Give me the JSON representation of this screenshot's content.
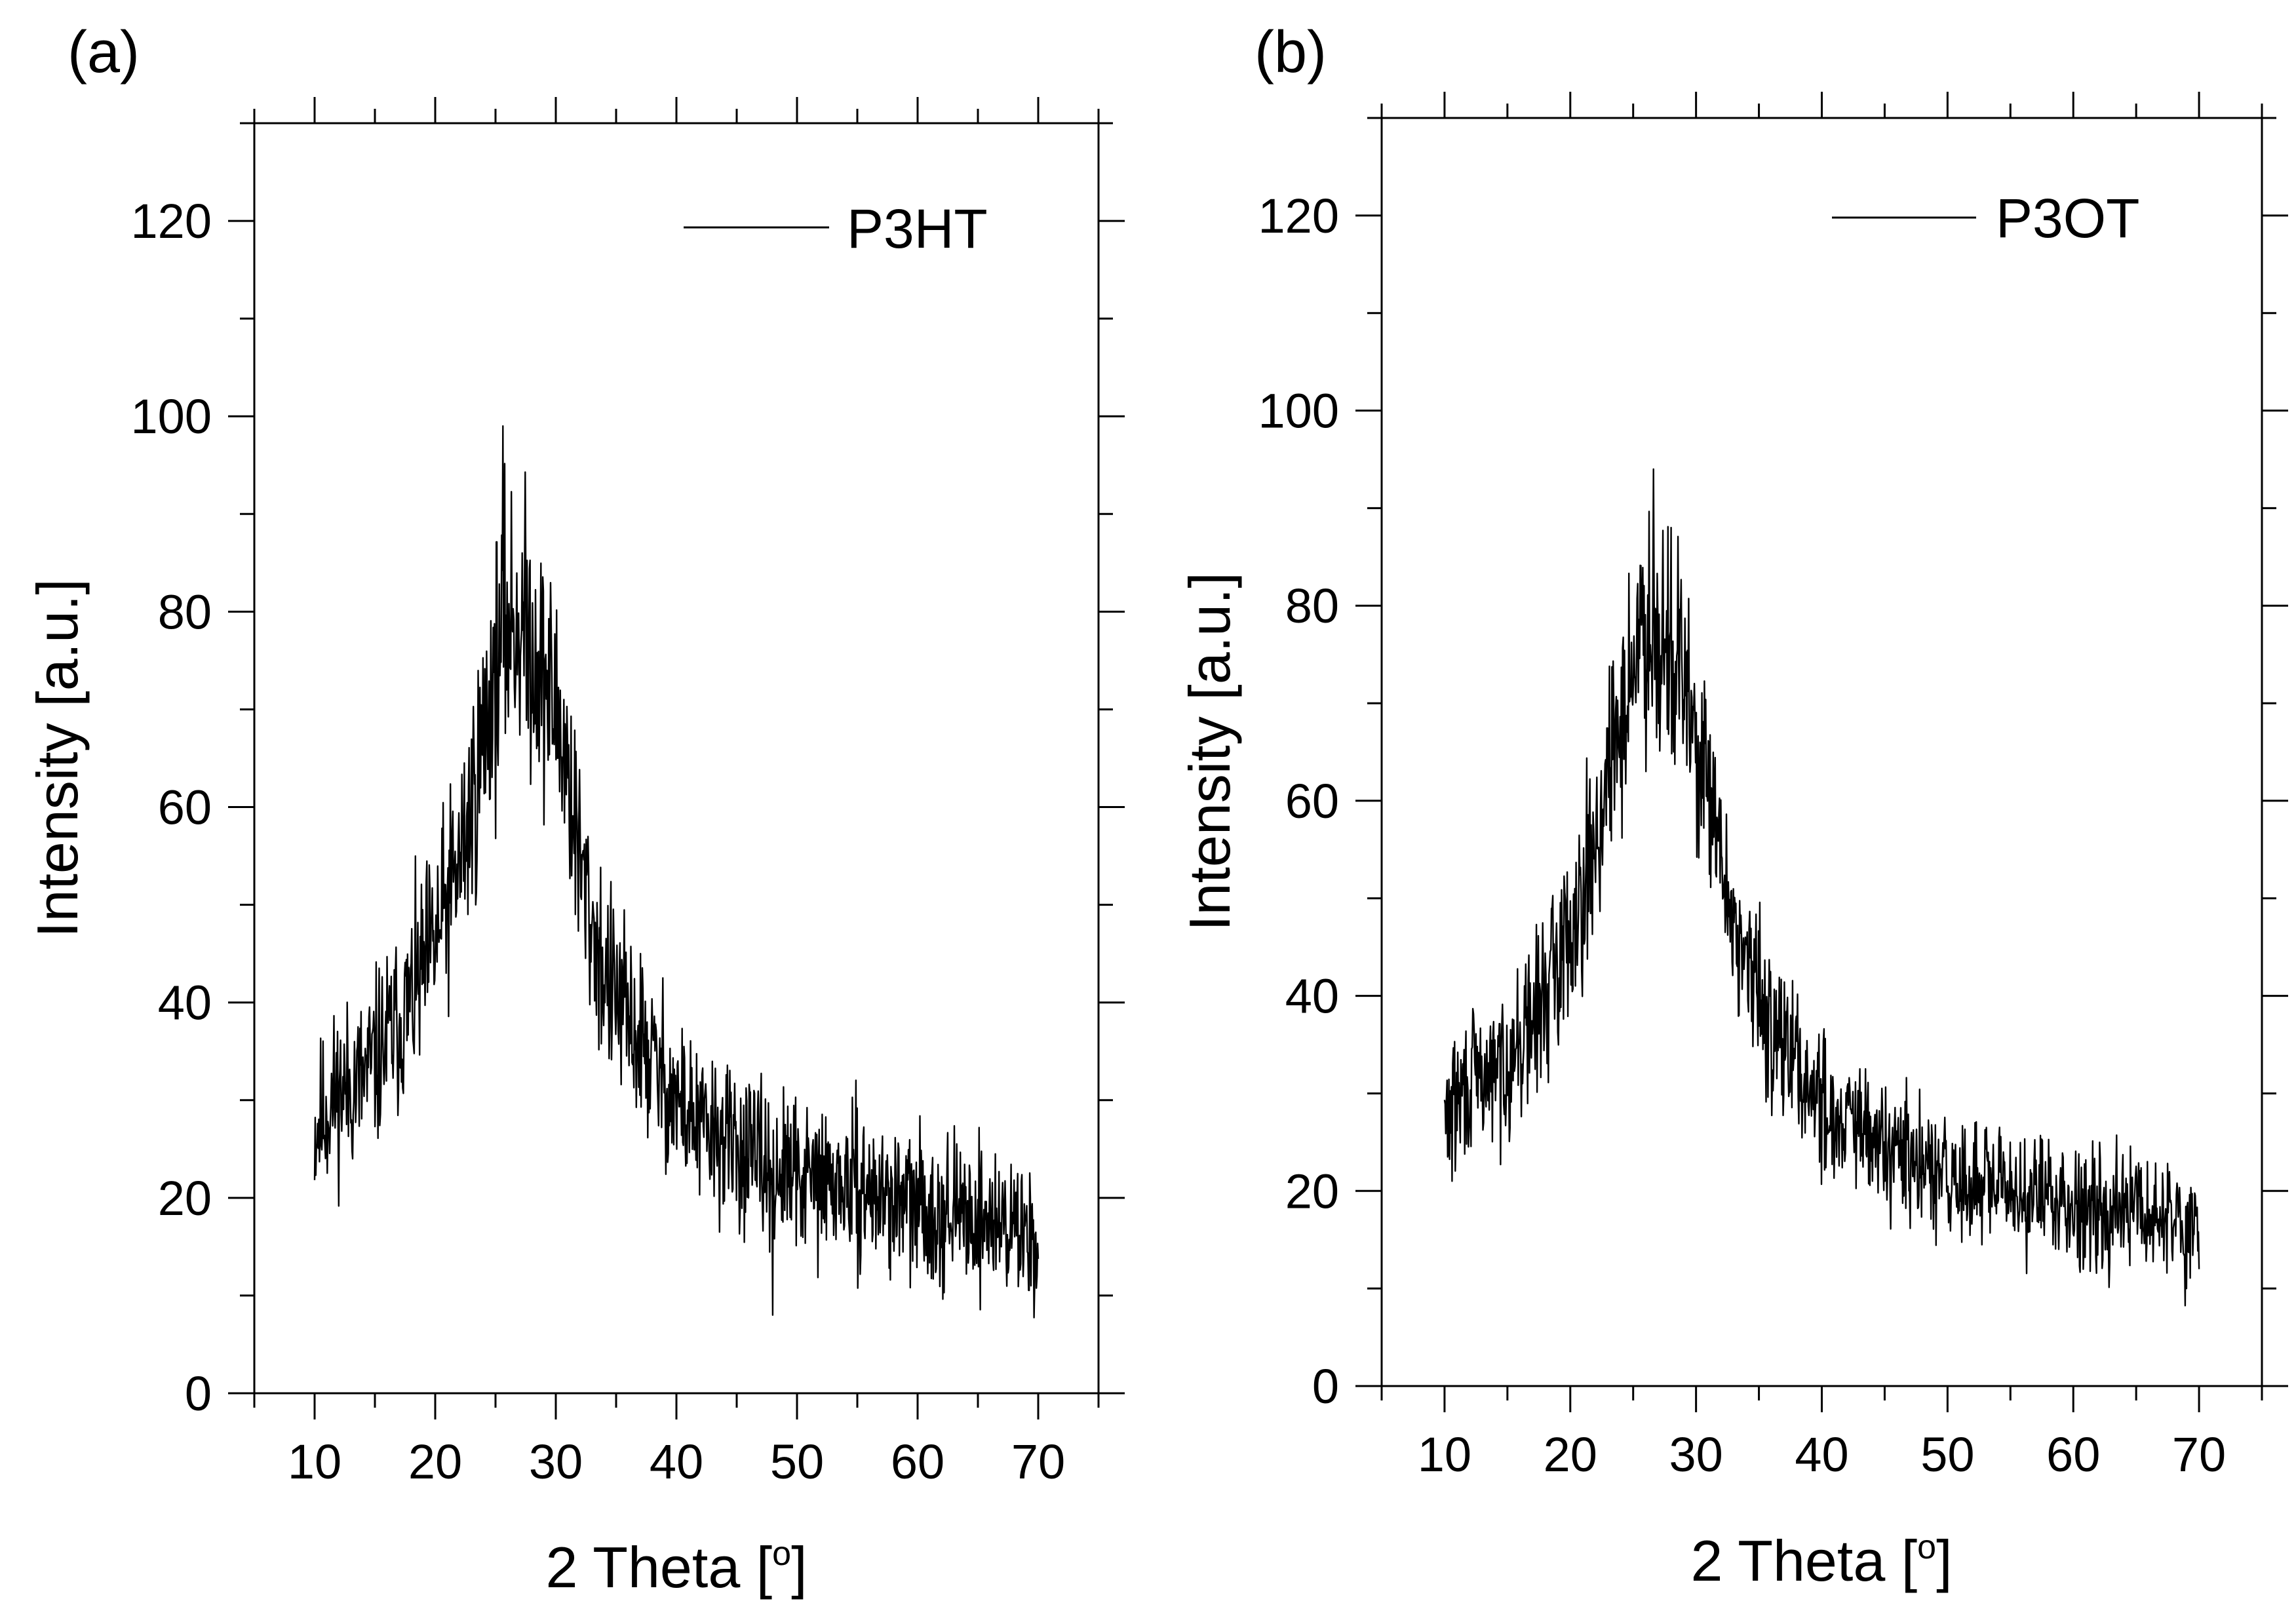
{
  "figure": {
    "background": "#ffffff",
    "line_color": "#000000"
  },
  "chart_data": [
    {
      "panel_label": "(a)",
      "type": "line",
      "title": "",
      "xlabel": "2 Theta [",
      "xlabel_degree": "o",
      "xlabel_close": "]",
      "ylabel": "Intensity [a.u.]",
      "xlim": [
        5,
        75
      ],
      "ylim": [
        0,
        130
      ],
      "xticks": [
        10,
        20,
        30,
        40,
        50,
        60,
        70
      ],
      "yticks": [
        0,
        20,
        40,
        60,
        80,
        100,
        120
      ],
      "x_tick_labels": [
        "10",
        "20",
        "30",
        "40",
        "50",
        "60",
        "70"
      ],
      "y_tick_labels": [
        "0",
        "20",
        "40",
        "60",
        "80",
        "100",
        "120"
      ],
      "grid": false,
      "legend": {
        "position": "top-right",
        "entries": [
          "P3HT"
        ]
      },
      "series": [
        {
          "name": "P3HT",
          "envelope_x": [
            10,
            12,
            14,
            16,
            18,
            20,
            22,
            23,
            24,
            25,
            26,
            27,
            28,
            29,
            30,
            31,
            32,
            33,
            34,
            36,
            38,
            40,
            42,
            44,
            46,
            48,
            50,
            55,
            60,
            65,
            68,
            70
          ],
          "envelope_y": [
            27,
            31,
            32,
            36,
            40,
            46,
            54,
            60,
            67,
            74,
            79,
            79,
            77,
            73,
            70,
            64,
            54,
            48,
            43,
            38,
            34,
            30,
            27,
            26,
            24,
            23,
            22,
            21,
            19,
            18,
            17,
            16
          ],
          "noise_amplitude": 7,
          "points": 1200,
          "seed": 11,
          "peak": {
            "x": 25.6,
            "y": 99
          },
          "min_dip": {
            "x": 48,
            "y": 8
          }
        }
      ]
    },
    {
      "panel_label": "(b)",
      "type": "line",
      "title": "",
      "xlabel": "2 Theta [",
      "xlabel_degree": "o",
      "xlabel_close": "]",
      "ylabel": "Intensity [a.u.]",
      "xlim": [
        5,
        75
      ],
      "ylim": [
        0,
        130
      ],
      "xticks": [
        10,
        20,
        30,
        40,
        50,
        60,
        70
      ],
      "yticks": [
        0,
        20,
        40,
        60,
        80,
        100,
        120
      ],
      "x_tick_labels": [
        "10",
        "20",
        "30",
        "40",
        "50",
        "60",
        "70"
      ],
      "y_tick_labels": [
        "0",
        "20",
        "40",
        "60",
        "80",
        "100",
        "120"
      ],
      "grid": false,
      "legend": {
        "position": "top-right",
        "entries": [
          "P3OT"
        ]
      },
      "series": [
        {
          "name": "P3OT",
          "envelope_x": [
            10,
            12,
            14,
            16,
            18,
            20,
            22,
            23,
            24,
            25,
            26,
            27,
            28,
            29,
            30,
            31,
            32,
            33,
            34,
            36,
            38,
            40,
            42,
            44,
            46,
            48,
            50,
            55,
            60,
            65,
            68,
            70
          ],
          "envelope_y": [
            27,
            31,
            32,
            35,
            40,
            47,
            56,
            62,
            68,
            74,
            78,
            78,
            76,
            72,
            66,
            60,
            53,
            48,
            43,
            37,
            33,
            29,
            27,
            25,
            24,
            22,
            21,
            20,
            19,
            18,
            17,
            16
          ],
          "noise_amplitude": 6,
          "points": 1200,
          "seed": 29,
          "peak": {
            "x": 26.6,
            "y": 94
          },
          "min_dip": {
            "x": 69,
            "y": 10
          }
        }
      ]
    }
  ]
}
